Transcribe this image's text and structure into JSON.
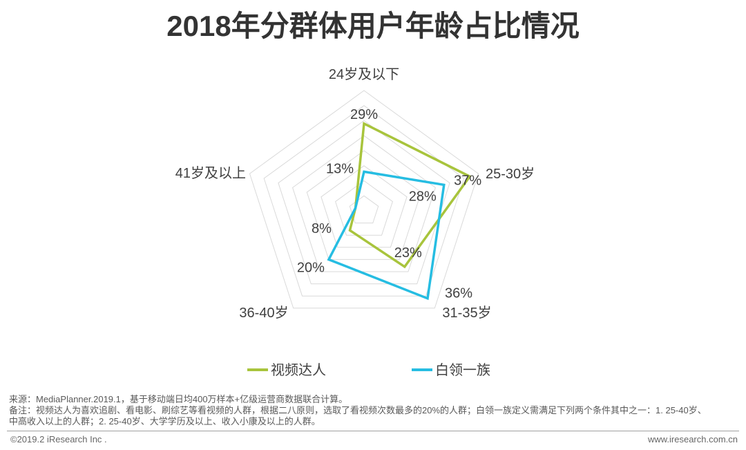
{
  "chart_data": {
    "type": "radar",
    "title": "2018年分群体用户年龄占比情况",
    "categories": [
      "24岁及以下",
      "25-30岁",
      "31-35岁",
      "36-40岁",
      "41岁及以上"
    ],
    "series": [
      {
        "name": "视频达人",
        "color": "#a8c43c",
        "values": [
          29,
          37,
          23,
          8,
          3
        ],
        "labels": [
          "29%",
          "37%",
          "23%",
          "8%",
          null
        ]
      },
      {
        "name": "白领一族",
        "color": "#26bde2",
        "values": [
          13,
          28,
          36,
          20,
          3
        ],
        "labels": [
          "13%",
          "28%",
          "36%",
          "20%",
          null
        ]
      }
    ],
    "rlim": [
      0,
      40
    ],
    "grid": true,
    "grid_step": 5,
    "legend": "bottom"
  },
  "colors": {
    "gridline": "#d9d9d9"
  },
  "footnotes": {
    "source": "来源：MediaPlanner.2019.1，基于移动端日均400万样本+亿级运营商数据联合计算。",
    "note_line_1": "备注：视频达人为喜欢追剧、看电影、刷综艺等看视频的人群，根据二八原则，选取了看视频次数最多的20%的人群；白领一族定义需满足下列两个条件其中之一：1. 25-40岁、",
    "note_line_2": "中高收入以上的人群；2. 25-40岁、大学学历及以上、收入小康及以上的人群。"
  },
  "footer": {
    "copyright": "©2019.2 iResearch Inc .",
    "website": "www.iresearch.com.cn"
  }
}
